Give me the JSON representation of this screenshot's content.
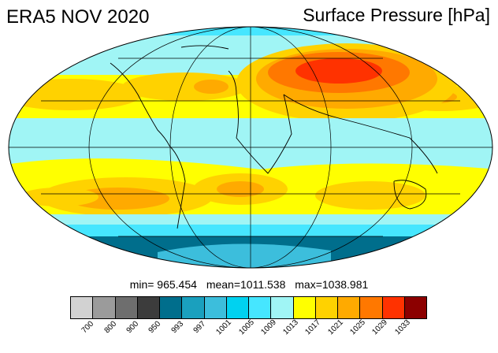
{
  "header": {
    "title_left": "ERA5 NOV 2020",
    "title_right": "Surface Pressure [hPa]"
  },
  "stats": {
    "min": "min= 965.454",
    "mean": "mean=1011.538",
    "max": "max=1038.981"
  },
  "colorbar": {
    "colors": [
      "#d2d2d2",
      "#9b9b9b",
      "#6e6e6e",
      "#3c3c3c",
      "#006e8c",
      "#1aa0be",
      "#3cbedc",
      "#00d2f0",
      "#46e6ff",
      "#a0f5f5",
      "#ffff00",
      "#ffd200",
      "#ffaa00",
      "#ff7800",
      "#ff3200",
      "#8c0000"
    ],
    "ticks": [
      "700",
      "800",
      "900",
      "950",
      "993",
      "997",
      "1001",
      "1005",
      "1009",
      "1013",
      "1017",
      "1021",
      "1025",
      "1029",
      "1033"
    ]
  },
  "map": {
    "projection": "Mollweide",
    "field_colors": {
      "ocean_low": "#a0f5f5",
      "polar": "#006e8c",
      "subtropic_high": "#ffff00",
      "high": "#ffd200",
      "very_high": "#ffaa00",
      "extreme": "#ff3200"
    }
  }
}
